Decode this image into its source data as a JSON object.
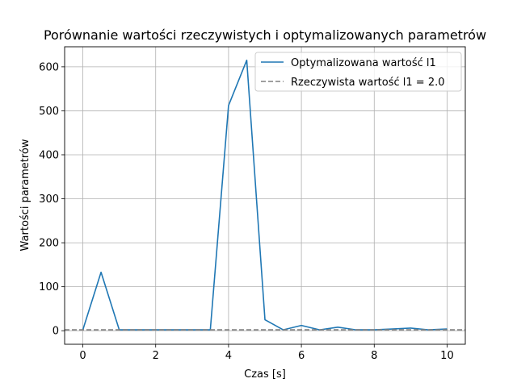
{
  "chart_data": {
    "type": "line",
    "title": "Porównanie wartości rzeczywistych i optymalizowanych parametrów",
    "xlabel": "Czas [s]",
    "ylabel": "Wartości parametrów",
    "xlim": [
      -0.5,
      10.5
    ],
    "ylim": [
      -30.8,
      645.6
    ],
    "x_ticks": [
      0,
      2,
      4,
      6,
      8,
      10
    ],
    "y_ticks": [
      0,
      100,
      200,
      300,
      400,
      500,
      600
    ],
    "grid": true,
    "legend_position": "top-right",
    "series": [
      {
        "name": "Optymalizowana wartość l1",
        "style": "solid",
        "color": "#1f77b4",
        "x": [
          0,
          0.5,
          1,
          1.5,
          2,
          2.5,
          3,
          3.5,
          4,
          4.5,
          5,
          5.5,
          6,
          6.5,
          7,
          7.5,
          8,
          8.5,
          9,
          9.5,
          10
        ],
        "y": [
          2,
          133,
          2,
          2,
          2,
          2,
          2,
          2,
          512,
          615,
          25,
          2,
          12,
          2,
          8,
          2,
          2,
          4,
          6,
          2,
          4
        ]
      },
      {
        "name": "Rzeczywista wartość l1 = 2.0",
        "style": "dashed",
        "color": "#808080",
        "constant": 2.0
      }
    ]
  }
}
